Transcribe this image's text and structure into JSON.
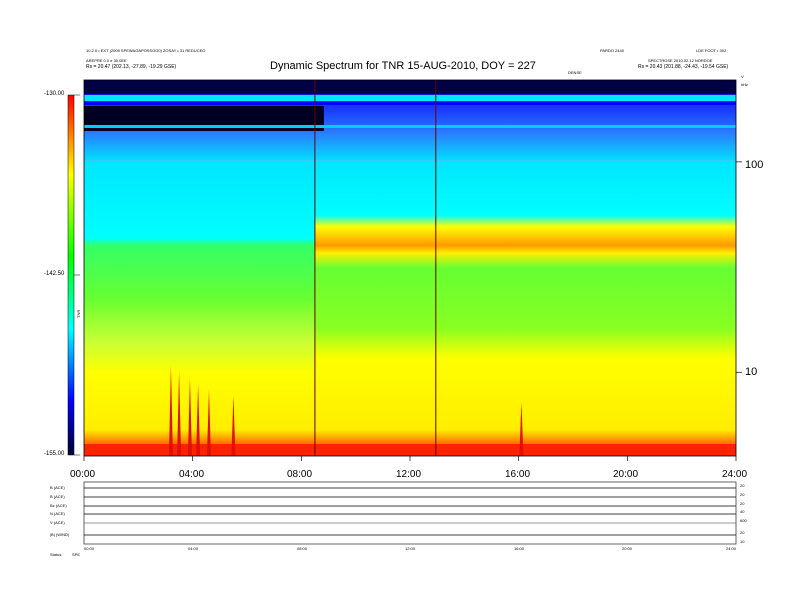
{
  "header": {
    "top_left_line1": "10.2.0 • EXT (2009 SPEWAGAPOSSOO0) ZOSAY • 31 REDUCEO",
    "top_left_line2": "AREPRE 0.0 e 30.0EE",
    "top_left_line3": "Rs = 20.47 (202.13, -27.89, -19.29 GSE)",
    "top_right_line1": "LDE FOOT • 302",
    "top_right_line2": "SPECTROSE 2010.02.12 NORDOE",
    "top_right_line3": "Rs = 20.43 (201.88, -24.43, -19.54 GSE)",
    "top_mid_right": "PARDO 2440",
    "top_mid_small": "DENSE",
    "right_corner_v": "V",
    "right_corner_units": "kHz"
  },
  "chart_data": {
    "type": "heatmap",
    "title": "Dynamic Spectrum for TNR 15-AUG-2010, DOY = 227",
    "x_tick_labels": [
      "00:00",
      "04:00",
      "08:00",
      "12:00",
      "16:00",
      "20:00",
      "24:00"
    ],
    "x_hours": [
      0,
      4,
      8,
      12,
      16,
      20,
      24
    ],
    "xlim": [
      0,
      24
    ],
    "y_scale": "log",
    "y_tick_labels": [
      "100",
      "10"
    ],
    "y_tick_values": [
      100,
      10
    ],
    "ylim": [
      4.0,
      245.0
    ],
    "colorbar": {
      "tick_labels": [
        "-130.00",
        "-142.50",
        "-155.00"
      ],
      "tick_values": [
        -130.0,
        -142.5,
        -155.0
      ],
      "range": [
        -155.0,
        -130.0
      ],
      "axis_label": "TNR"
    },
    "features": {
      "vertical_lines_hours": [
        8.5,
        12.95
      ],
      "burst_hours": [
        3.2,
        3.5,
        3.9,
        4.2,
        4.6,
        5.5,
        16.1
      ],
      "upper_band_boundary_kHz_before": 38,
      "upper_band_boundary_kHz_after": 29
    },
    "colors": [
      "#000066",
      "#0000ff",
      "#00ffff",
      "#00ff00",
      "#ffff00",
      "#ff0000",
      "#800000"
    ]
  },
  "lower_panel": {
    "left_labels": [
      "B (ACE)",
      "B (ACE)",
      "Bz (ACE)",
      "N (ACE)",
      "V (ACE)",
      "|B| (WIND)",
      "Status"
    ],
    "left_label_extra": "SPE",
    "right_values": [
      "20",
      "20",
      "20",
      "40",
      "600",
      "20",
      "10"
    ],
    "x_tick_labels": [
      "00:00",
      "04:00",
      "08:00",
      "12:00",
      "16:00",
      "20:00",
      "24:00"
    ]
  }
}
